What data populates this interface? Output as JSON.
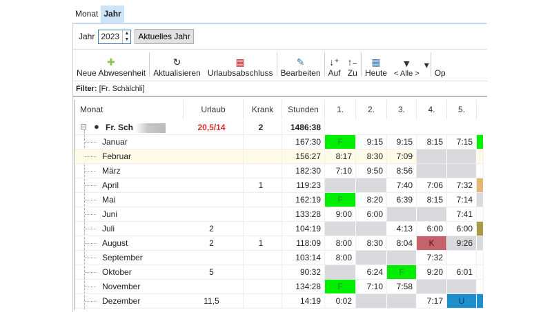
{
  "tabs": [
    {
      "label": "Monat",
      "active": false
    },
    {
      "label": "Jahr",
      "active": true
    }
  ],
  "year": {
    "label": "Jahr",
    "value": "2023",
    "current_button": "Aktuelles Jahr"
  },
  "toolbar": [
    {
      "label": "Neue Abwesenheit",
      "icon": "plus-icon",
      "glyph": "✚",
      "color": "#8bc34a"
    },
    {
      "sep": true
    },
    {
      "label": "Aktualisieren",
      "icon": "refresh-icon",
      "glyph": "↻",
      "color": "#222"
    },
    {
      "label": "Urlaubsabschluss",
      "icon": "calculator-icon",
      "glyph": "▦",
      "color": "#c62828"
    },
    {
      "sep": true
    },
    {
      "label": "Bearbeiten",
      "icon": "edit-icon",
      "glyph": "✎",
      "color": "#3a78b0"
    },
    {
      "sep": true
    },
    {
      "label": "Auf",
      "icon": "sort-ascending-icon",
      "glyph": "↓⁺",
      "color": "#222"
    },
    {
      "label": "Zu",
      "icon": "sort-descending-icon",
      "glyph": "↑₋",
      "color": "#222"
    },
    {
      "sep": true
    },
    {
      "label": "Heute",
      "icon": "calendar-icon",
      "glyph": "▦",
      "color": "#3a78b0"
    },
    {
      "label": "< Alle >",
      "icon": "filter-icon",
      "glyph": "▼",
      "color": "#333"
    },
    {
      "label": "",
      "icon": "dropdown-arrow-icon",
      "glyph": "▾",
      "color": "#333"
    },
    {
      "sep": true
    },
    {
      "label": "Op",
      "icon": "",
      "glyph": "",
      "color": "#222"
    }
  ],
  "filter": {
    "label": "Filter:",
    "value": "[Fr. Schälchli]"
  },
  "columns": [
    "Monat",
    "Urlaub",
    "Krank",
    "Stunden",
    "1.",
    "2.",
    "3.",
    "4.",
    "5."
  ],
  "colors": {
    "holiday": "#00ee00",
    "sick": "#c4636c",
    "vacation": "#1f8fcc",
    "weekend": "#d9dadd",
    "tan": "#e2b877",
    "olive": "#a99b45",
    "highlight": "#fffbe8",
    "overdue": "#d32f2f"
  },
  "person": {
    "name": "Fr. Sch",
    "urlaub": "20,5/14",
    "krank": "2",
    "stunden": "1486:38"
  },
  "months": [
    {
      "name": "Januar",
      "urlaub": "",
      "krank": "",
      "stunden": "167:30",
      "days": [
        [
          "F",
          "holiday"
        ],
        [
          "9:15",
          ""
        ],
        [
          "9:15",
          ""
        ],
        [
          "8:15",
          ""
        ],
        [
          "7:15",
          ""
        ],
        [
          "",
          "holiday"
        ]
      ]
    },
    {
      "name": "Februar",
      "urlaub": "",
      "krank": "",
      "stunden": "156:27",
      "selected": true,
      "days": [
        [
          "8:17",
          ""
        ],
        [
          "8:30",
          ""
        ],
        [
          "7:09",
          ""
        ],
        [
          "",
          "weekend"
        ],
        [
          "",
          "weekend"
        ],
        [
          "",
          ""
        ]
      ]
    },
    {
      "name": "März",
      "urlaub": "",
      "krank": "",
      "stunden": "182:30",
      "days": [
        [
          "7:10",
          ""
        ],
        [
          "9:50",
          ""
        ],
        [
          "8:56",
          ""
        ],
        [
          "",
          "weekend"
        ],
        [
          "",
          "weekend"
        ],
        [
          "",
          ""
        ]
      ]
    },
    {
      "name": "April",
      "urlaub": "",
      "krank": "1",
      "stunden": "119:23",
      "days": [
        [
          "",
          "weekend"
        ],
        [
          "",
          "weekend"
        ],
        [
          "7:40",
          ""
        ],
        [
          "7:06",
          ""
        ],
        [
          "7:32",
          ""
        ],
        [
          "",
          "tan"
        ]
      ]
    },
    {
      "name": "Mai",
      "urlaub": "",
      "krank": "",
      "stunden": "162:19",
      "days": [
        [
          "F",
          "holiday"
        ],
        [
          "8:20",
          ""
        ],
        [
          "6:39",
          ""
        ],
        [
          "8:15",
          ""
        ],
        [
          "7:14",
          ""
        ],
        [
          "",
          "weekend"
        ]
      ]
    },
    {
      "name": "Juni",
      "urlaub": "",
      "krank": "",
      "stunden": "133:28",
      "days": [
        [
          "9:00",
          ""
        ],
        [
          "6:00",
          ""
        ],
        [
          "",
          "weekend"
        ],
        [
          "",
          "weekend"
        ],
        [
          "7:41",
          ""
        ],
        [
          "",
          ""
        ]
      ]
    },
    {
      "name": "Juli",
      "urlaub": "2",
      "krank": "",
      "stunden": "104:19",
      "days": [
        [
          "",
          "weekend"
        ],
        [
          "",
          "weekend"
        ],
        [
          "4:13",
          ""
        ],
        [
          "6:00",
          ""
        ],
        [
          "6:00",
          ""
        ],
        [
          "",
          "olive"
        ]
      ]
    },
    {
      "name": "August",
      "urlaub": "2",
      "krank": "1",
      "stunden": "118:09",
      "days": [
        [
          "8:00",
          ""
        ],
        [
          "8:30",
          ""
        ],
        [
          "8:04",
          ""
        ],
        [
          "K",
          "sick"
        ],
        [
          "9:26",
          "weekend"
        ],
        [
          "",
          "weekend"
        ]
      ]
    },
    {
      "name": "September",
      "urlaub": "",
      "krank": "",
      "stunden": "103:14",
      "days": [
        [
          "8:00",
          ""
        ],
        [
          "",
          "weekend"
        ],
        [
          "",
          "weekend"
        ],
        [
          "7:32",
          ""
        ],
        [
          "",
          ""
        ],
        [
          "",
          ""
        ]
      ]
    },
    {
      "name": "Oktober",
      "urlaub": "5",
      "krank": "",
      "stunden": "90:32",
      "days": [
        [
          "",
          "weekend"
        ],
        [
          "6:24",
          ""
        ],
        [
          "F",
          "holiday"
        ],
        [
          "9:20",
          ""
        ],
        [
          "6:01",
          ""
        ],
        [
          "",
          ""
        ]
      ]
    },
    {
      "name": "November",
      "urlaub": "",
      "krank": "",
      "stunden": "134:28",
      "days": [
        [
          "F",
          "holiday"
        ],
        [
          "7:10",
          ""
        ],
        [
          "7:58",
          ""
        ],
        [
          "",
          "weekend"
        ],
        [
          "",
          "weekend"
        ],
        [
          "",
          ""
        ]
      ]
    },
    {
      "name": "Dezember",
      "urlaub": "11,5",
      "krank": "",
      "stunden": "14:19",
      "days": [
        [
          "0:02",
          ""
        ],
        [
          "",
          "weekend"
        ],
        [
          "",
          "weekend"
        ],
        [
          "7:17",
          ""
        ],
        [
          "U",
          "vacation"
        ],
        [
          "",
          "vacation"
        ]
      ]
    }
  ]
}
